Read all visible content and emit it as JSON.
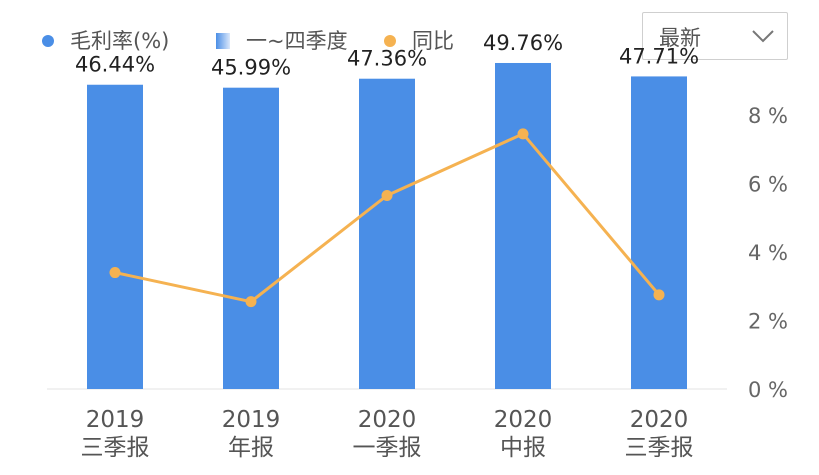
{
  "legend": {
    "items": [
      {
        "label": "毛利率(%)",
        "color": "#4a8ee6",
        "shape": "dot"
      },
      {
        "label": "一~四季度",
        "color": "#4a8ee6",
        "shape": "gradient-square"
      },
      {
        "label": "同比",
        "color": "#f5b251",
        "shape": "dot"
      }
    ]
  },
  "selector": {
    "value": "最新",
    "icon": "chevron-down-icon"
  },
  "chart_data": {
    "type": "bar",
    "categories": [
      [
        "2019",
        "三季报"
      ],
      [
        "2019",
        "年报"
      ],
      [
        "2020",
        "一季报"
      ],
      [
        "2020",
        "中报"
      ],
      [
        "2020",
        "三季报"
      ]
    ],
    "series": [
      {
        "name": "毛利率(%)",
        "type": "bar",
        "axis": "left",
        "color": "#4a8ee6",
        "values": [
          46.44,
          45.99,
          47.36,
          49.76,
          47.71
        ],
        "labels": [
          "46.44%",
          "45.99%",
          "47.36%",
          "49.76%",
          "47.71%"
        ]
      },
      {
        "name": "同比",
        "type": "line",
        "axis": "right",
        "color": "#f5b251",
        "values": [
          3.4,
          2.55,
          5.65,
          7.45,
          2.75
        ]
      }
    ],
    "y_right": {
      "ticks": [
        "8 %",
        "6 %",
        "4 %",
        "2 %",
        "0 %"
      ],
      "tick_values": [
        8,
        6,
        4,
        2,
        0
      ],
      "ylim": [
        0,
        8
      ]
    },
    "y_left_hidden": {
      "ylim": [
        0,
        58
      ]
    },
    "grid": false
  }
}
